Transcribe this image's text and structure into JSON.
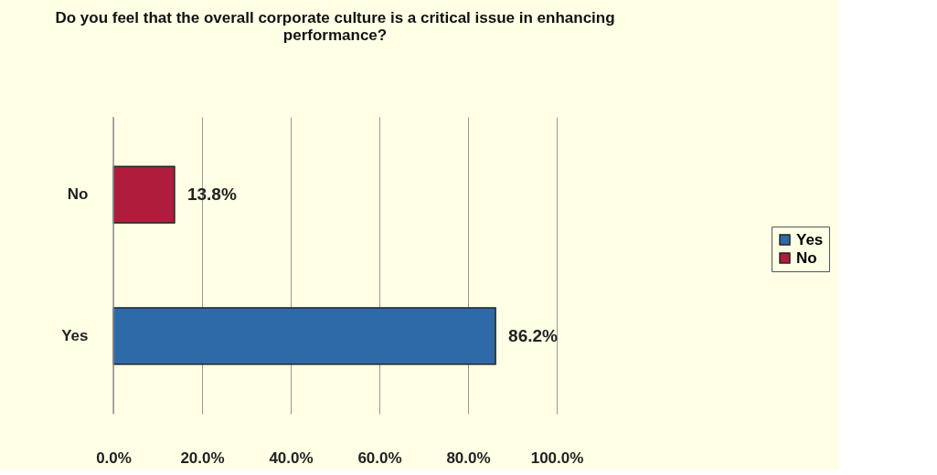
{
  "chart_data": {
    "type": "bar",
    "orientation": "horizontal",
    "title": [
      "Do you feel that the overall corporate culture is a critical issue in enhancing",
      "performance?"
    ],
    "categories": [
      "No",
      "Yes"
    ],
    "series": [
      {
        "name": "Yes",
        "color": "#2e6aa8",
        "values": [
          null,
          86.2
        ],
        "value_labels": [
          null,
          "86.2%"
        ]
      },
      {
        "name": "No",
        "color": "#b01c3c",
        "values": [
          13.8,
          null
        ],
        "value_labels": [
          "13.8%",
          null
        ]
      }
    ],
    "xlim": [
      0,
      100
    ],
    "xticks": [
      {
        "value": 0,
        "label": "0.0%"
      },
      {
        "value": 20,
        "label": "20.0%"
      },
      {
        "value": 40,
        "label": "40.0%"
      },
      {
        "value": 60,
        "label": "60.0%"
      },
      {
        "value": 80,
        "label": "80.0%"
      },
      {
        "value": 100,
        "label": "100.0%"
      }
    ],
    "grid": "x",
    "legend": "right"
  }
}
